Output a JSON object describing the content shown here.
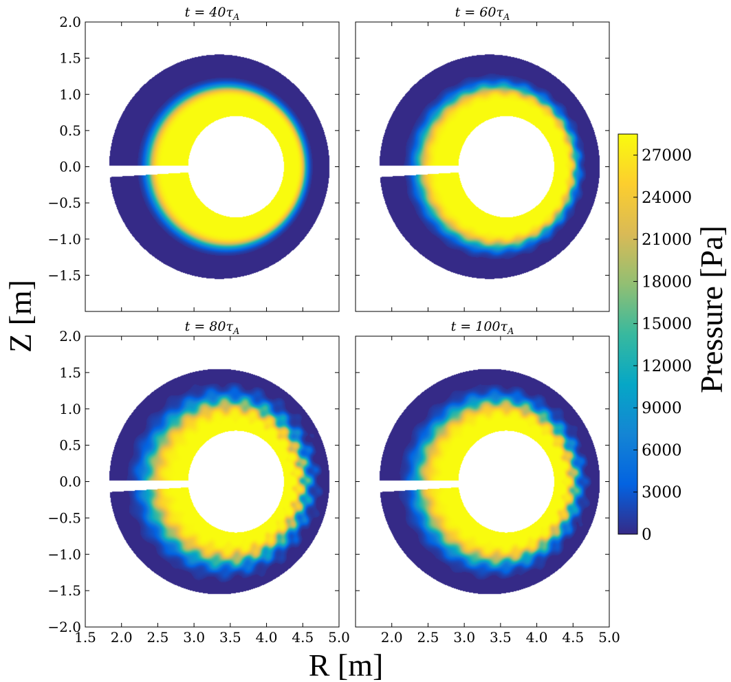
{
  "chart_data": {
    "type": "heatmap",
    "description_series": "poloidal cross-section pressure maps",
    "xlabel": "R [m]",
    "ylabel": "Z [m]",
    "xlim": [
      1.5,
      5.0
    ],
    "ylim": [
      -2.0,
      2.0
    ],
    "xticks": [
      1.5,
      2.0,
      2.5,
      3.0,
      3.5,
      4.0,
      4.5,
      5.0
    ],
    "yticks": [
      -2.0,
      -1.5,
      -1.0,
      -0.5,
      0.0,
      0.5,
      1.0,
      1.5,
      2.0
    ],
    "x_tick_labels": [
      "1.5",
      "2.0",
      "2.5",
      "3.0",
      "3.5",
      "4.0",
      "4.5",
      "5.0"
    ],
    "y_tick_labels": [
      "−2.0",
      "−1.5",
      "−1.0",
      "−0.5",
      "0.0",
      "0.5",
      "1.0",
      "1.5",
      "2.0"
    ],
    "panels": [
      {
        "title_prefix": "t = 40",
        "title_sym": "τ",
        "title_sub": "A",
        "time": 40,
        "turbulence": 0.0
      },
      {
        "title_prefix": "t = 60",
        "title_sym": "τ",
        "title_sub": "A",
        "time": 60,
        "turbulence": 0.35
      },
      {
        "title_prefix": "t = 80",
        "title_sym": "τ",
        "title_sub": "A",
        "time": 80,
        "turbulence": 1.0
      },
      {
        "title_prefix": "t = 100",
        "title_sym": "τ",
        "title_sub": "A",
        "time": 100,
        "turbulence": 0.8
      }
    ],
    "domain": {
      "outer_center_R": 3.35,
      "outer_center_Z": 0.0,
      "outer_radius_R": 1.52,
      "outer_radius_Z": 1.55,
      "inner_center_R": 3.58,
      "inner_center_Z": 0.0,
      "inner_radius_R": 0.66,
      "inner_radius_Z": 0.7,
      "slot_R_end": 2.95
    },
    "colorbar": {
      "label": "Pressure [Pa]",
      "min": 0,
      "max": 28500,
      "ticks": [
        0,
        3000,
        6000,
        9000,
        12000,
        15000,
        18000,
        21000,
        24000,
        27000
      ],
      "tick_labels": [
        "0",
        "3000",
        "6000",
        "9000",
        "12000",
        "15000",
        "18000",
        "21000",
        "24000",
        "27000"
      ],
      "colormap": [
        "#352a87",
        "#0363e1",
        "#1485d4",
        "#06a7c6",
        "#38b99e",
        "#92bf73",
        "#d9ba56",
        "#fcce2e",
        "#f9fb0e"
      ]
    }
  }
}
